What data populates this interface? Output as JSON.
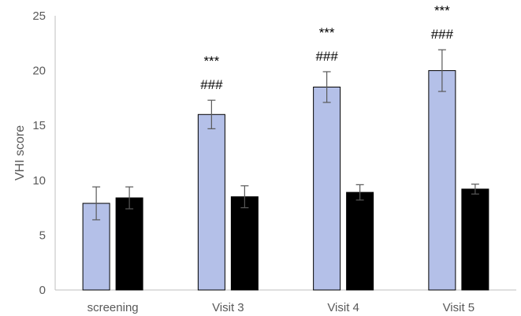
{
  "chart_data": {
    "type": "bar",
    "title": "",
    "xlabel": "",
    "ylabel": "VHI score",
    "ylim": [
      0,
      25
    ],
    "yticks": [
      0,
      5,
      10,
      15,
      20,
      25
    ],
    "grid": false,
    "categories": [
      "screening",
      "Visit 3",
      "Visit 4",
      "Visit 5"
    ],
    "series": [
      {
        "values": [
          7.9,
          16.0,
          18.5,
          20.0
        ],
        "errors": [
          1.5,
          1.3,
          1.4,
          1.9
        ],
        "color": "#b4c0e8"
      },
      {
        "values": [
          8.4,
          8.5,
          8.9,
          9.2
        ],
        "errors": [
          1.0,
          1.0,
          0.7,
          0.45
        ],
        "color": "#000000"
      }
    ],
    "annotations": [
      {
        "category": "Visit 3",
        "lines": [
          "***",
          "###"
        ]
      },
      {
        "category": "Visit 4",
        "lines": [
          "***",
          "###"
        ]
      },
      {
        "category": "Visit 5",
        "lines": [
          "***",
          "###"
        ]
      }
    ]
  }
}
